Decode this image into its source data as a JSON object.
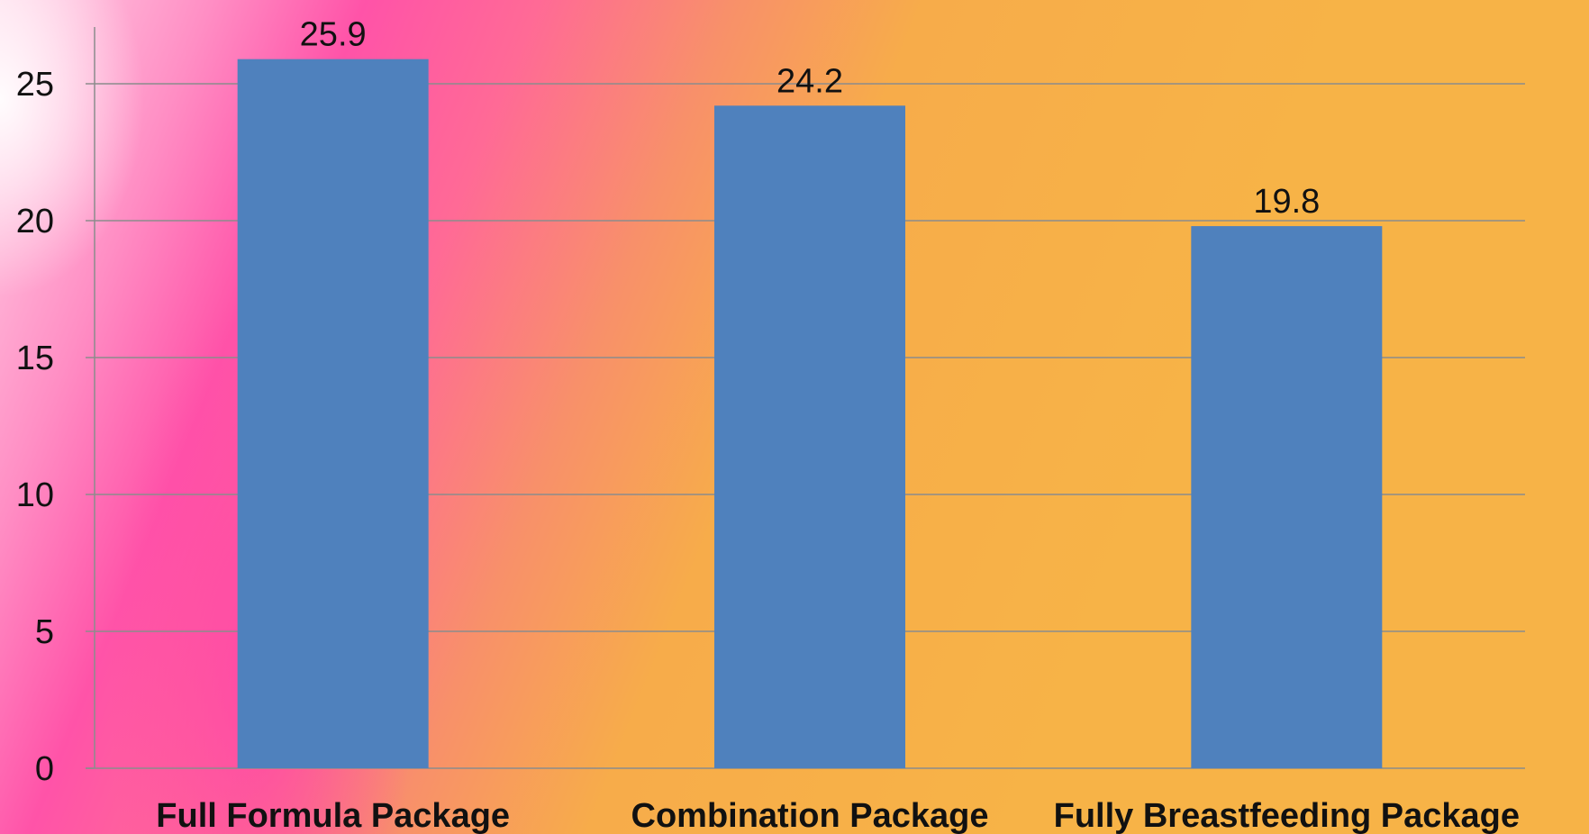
{
  "chart_data": {
    "type": "bar",
    "title": "",
    "xlabel": "",
    "ylabel": "",
    "categories": [
      "Full Formula Package",
      "Combination Package",
      "Fully Breastfeeding Package"
    ],
    "values": [
      25.9,
      24.2,
      19.8
    ],
    "data_labels": [
      "25.9",
      "24.2",
      "19.8"
    ],
    "ylim": [
      0,
      25
    ],
    "yticks": [
      "0",
      "5",
      "10",
      "15",
      "20",
      "25"
    ],
    "grid": true,
    "legend": "none",
    "bar_color": "#4f81bd",
    "grid_color": "#8c8c8c"
  }
}
